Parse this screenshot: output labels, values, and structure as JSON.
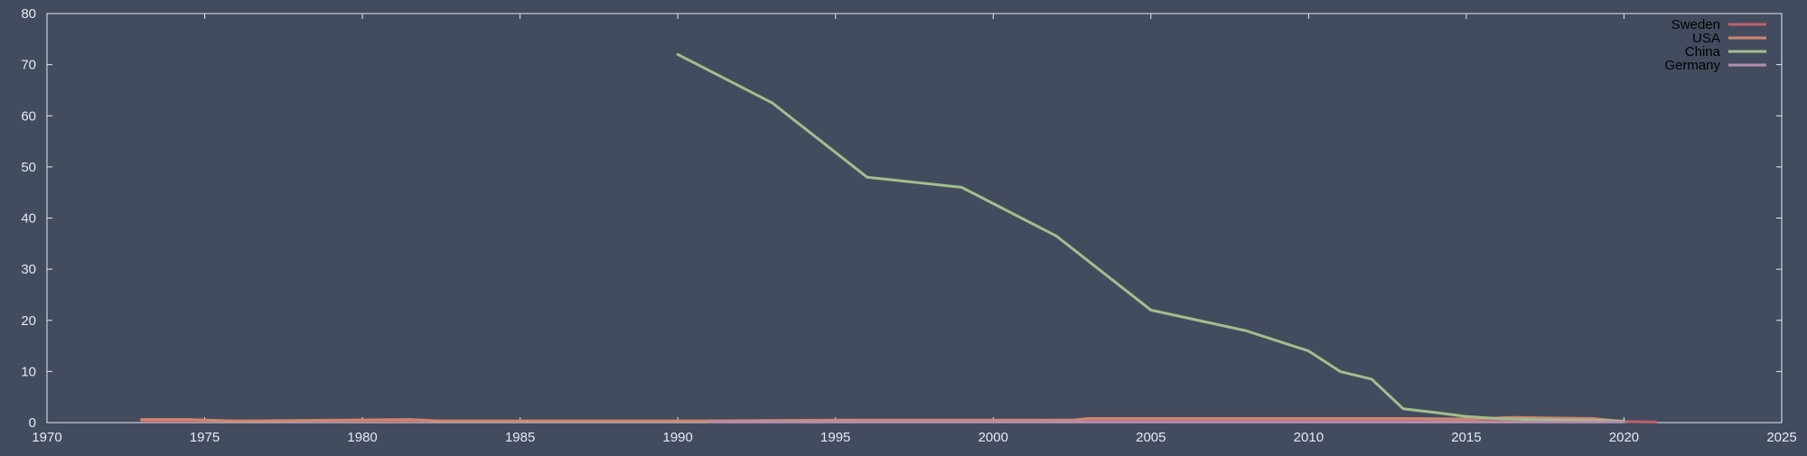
{
  "chart_data": {
    "type": "line",
    "title": "",
    "xlabel": "",
    "ylabel": "",
    "xlim": [
      1970,
      2025
    ],
    "ylim": [
      0,
      80
    ],
    "x_ticks": [
      1970,
      1975,
      1980,
      1985,
      1990,
      1995,
      2000,
      2005,
      2010,
      2015,
      2020,
      2025
    ],
    "y_ticks": [
      0,
      10,
      20,
      30,
      40,
      50,
      60,
      70,
      80
    ],
    "grid": false,
    "legend_position": "top-right",
    "colors": {
      "background": "#434c5e",
      "axis": "#e5e9f0",
      "legend_text": "#000000"
    },
    "series": [
      {
        "name": "Sweden",
        "color": "#bf616a",
        "x": [
          1973,
          1975,
          1980,
          1985,
          1990,
          1995,
          2000,
          2003,
          2005,
          2010,
          2014,
          2015,
          2017,
          2019,
          2020,
          2021
        ],
        "y": [
          0.3,
          0.3,
          0.3,
          0.3,
          0.3,
          0.3,
          0.4,
          0.5,
          0.5,
          0.5,
          0.6,
          0.5,
          0.7,
          0.4,
          0.2,
          0.1
        ]
      },
      {
        "name": "USA",
        "color": "#d08770",
        "x": [
          1973,
          1974.5,
          1976,
          1981.5,
          1982.5,
          1985,
          1990,
          1995.5,
          2000,
          2002.5,
          2003,
          2010,
          2013,
          2015,
          2016.5,
          2017.5,
          2019,
          2020
        ],
        "y": [
          0.6,
          0.6,
          0.3,
          0.6,
          0.3,
          0.3,
          0.3,
          0.5,
          0.5,
          0.5,
          0.8,
          0.8,
          0.8,
          0.7,
          1.0,
          0.9,
          0.8,
          0.2
        ]
      },
      {
        "name": "China",
        "color": "#a3be8c",
        "x": [
          1990,
          1993,
          1996,
          1999,
          2002,
          2005,
          2008,
          2010,
          2011,
          2012,
          2013,
          2014,
          2015,
          2016,
          2017,
          2018,
          2019,
          2020
        ],
        "y": [
          72,
          62.5,
          48,
          46,
          36.5,
          22,
          18,
          14,
          10,
          8.5,
          2.7,
          2.0,
          1.2,
          0.8,
          0.6,
          0.5,
          0.4,
          0.3
        ]
      },
      {
        "name": "Germany",
        "color": "#b48ead",
        "x": [
          1991,
          1995,
          2000,
          2005,
          2010,
          2015,
          2020
        ],
        "y": [
          0.1,
          0.1,
          0.1,
          0.1,
          0.1,
          0.1,
          0.1
        ]
      }
    ]
  }
}
